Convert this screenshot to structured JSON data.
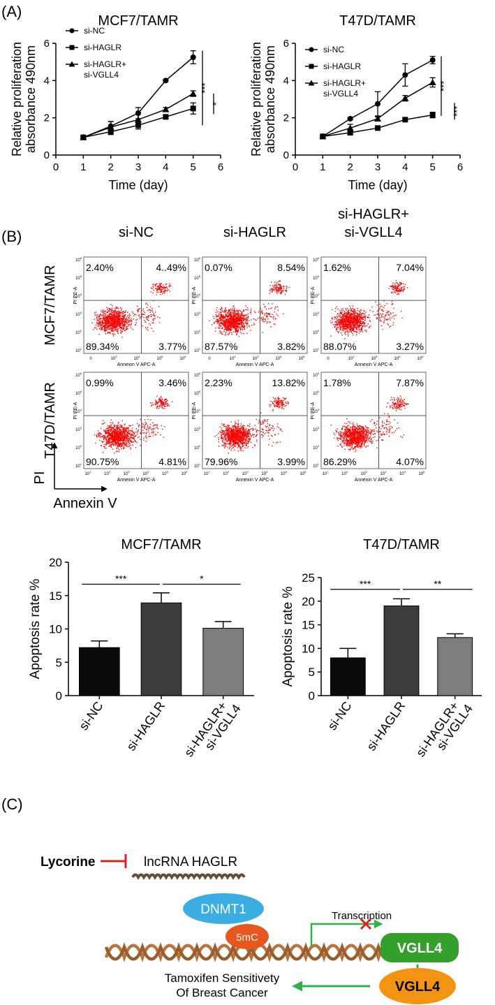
{
  "panels": {
    "A": "(A)",
    "B": "(B)",
    "C": "(C)"
  },
  "chart_data": [
    {
      "type": "line",
      "title": "MCF7/TAMR",
      "xlabel": "Time (day)",
      "ylabel_lines": [
        "Relative proliferation",
        "absorbance 490nm"
      ],
      "xlim": [
        0,
        6
      ],
      "ylim": [
        0,
        6
      ],
      "xticks": [
        "0",
        "1",
        "2",
        "3",
        "4",
        "5",
        "6"
      ],
      "yticks": [
        "0",
        "2",
        "4",
        "6"
      ],
      "x": [
        1,
        2,
        3,
        4,
        5
      ],
      "series": [
        {
          "name": "si-NC",
          "marker": "circle",
          "values": [
            0.95,
            1.55,
            2.25,
            4.0,
            5.25
          ],
          "errors": [
            0.08,
            0.25,
            0.3,
            0.05,
            0.35
          ]
        },
        {
          "name": "si-HAGLR",
          "marker": "square",
          "values": [
            0.95,
            1.25,
            1.6,
            2.05,
            2.5
          ],
          "errors": [
            0.05,
            0.15,
            0.2,
            0.1,
            0.3
          ]
        },
        {
          "name": "si-HAGLR+ si-VGLL4",
          "legend_lines": [
            "si-HAGLR+",
            "si-VGLL4"
          ],
          "marker": "triangle",
          "values": [
            0.95,
            1.5,
            1.9,
            2.45,
            3.3
          ],
          "errors": [
            0.05,
            0.3,
            0.35,
            0.1,
            0.15
          ]
        }
      ],
      "significance": [
        "***",
        "*"
      ]
    },
    {
      "type": "line",
      "title": "T47D/TAMR",
      "xlabel": "Time (day)",
      "ylabel_lines": [
        "Relative proliferation",
        "absorbance 490nm"
      ],
      "xlim": [
        0,
        6
      ],
      "ylim": [
        0,
        6
      ],
      "xticks": [
        "0",
        "1",
        "2",
        "3",
        "4",
        "5",
        "6"
      ],
      "yticks": [
        "0",
        "2",
        "4",
        "6"
      ],
      "x": [
        1,
        2,
        3,
        4,
        5
      ],
      "series": [
        {
          "name": "si-NC",
          "marker": "circle",
          "values": [
            1.0,
            1.95,
            2.75,
            4.3,
            5.1
          ],
          "errors": [
            0.05,
            0.05,
            0.65,
            0.6,
            0.2
          ]
        },
        {
          "name": "si-HAGLR",
          "marker": "square",
          "values": [
            1.0,
            1.2,
            1.45,
            1.9,
            2.15
          ],
          "errors": [
            0.05,
            0.1,
            0.05,
            0.05,
            0.15
          ]
        },
        {
          "name": "si-HAGLR+ si-VGLL4",
          "legend_lines": [
            "si-HAGLR+",
            "si-VGLL4"
          ],
          "marker": "triangle",
          "values": [
            1.0,
            1.45,
            1.95,
            3.05,
            3.9
          ],
          "errors": [
            0.05,
            0.2,
            0.1,
            0.15,
            0.25
          ]
        }
      ],
      "significance": [
        "***",
        "***"
      ]
    },
    {
      "type": "bar",
      "title": "MCF7/TAMR",
      "ylabel": "Apoptosis rate %",
      "ylim": [
        0,
        20
      ],
      "yticks": [
        "0",
        "5",
        "10",
        "15",
        "20"
      ],
      "categories": [
        "si-NC",
        "si-HAGLR",
        "si-HAGLR+ si-VGLL4"
      ],
      "category_lines": [
        [
          "si-NC"
        ],
        [
          "si-HAGLR"
        ],
        [
          "si-HAGLR+",
          "si-VGLL4"
        ]
      ],
      "values": [
        7.2,
        13.9,
        10.1
      ],
      "errors": [
        1.0,
        1.5,
        1.0
      ],
      "colors": [
        "#0a0a0a",
        "#3c3c3f",
        "#7d7d7d"
      ],
      "significance": [
        "***",
        "*"
      ]
    },
    {
      "type": "bar",
      "title": "T47D/TAMR",
      "ylabel": "Apoptosis rate %",
      "ylim": [
        0,
        25
      ],
      "yticks": [
        "0",
        "5",
        "10",
        "15",
        "20",
        "25"
      ],
      "categories": [
        "si-NC",
        "si-HAGLR",
        "si-HAGLR+ si-VGLL4"
      ],
      "category_lines": [
        [
          "si-NC"
        ],
        [
          "si-HAGLR"
        ],
        [
          "si-HAGLR+",
          "si-VGLL4"
        ]
      ],
      "values": [
        8.0,
        19.0,
        12.3
      ],
      "errors": [
        2.0,
        1.5,
        0.8
      ],
      "colors": [
        "#0a0a0a",
        "#3c3c3f",
        "#7d7d7d"
      ],
      "significance": [
        "***",
        "**"
      ]
    }
  ],
  "flow": {
    "col_titles": [
      [
        "si-NC"
      ],
      [
        "si-HAGLR"
      ],
      [
        "si-HAGLR+",
        "si-VGLL4"
      ]
    ],
    "row_titles": [
      "MCF7/TAMR",
      "T47D/TAMR"
    ],
    "x_axis_title": "Annexin V APC-A",
    "y_axis_title": "PI PE-A",
    "tick_exponents": [
      "1",
      "2",
      "3",
      "4",
      "5",
      "6"
    ],
    "top_row_x_ticks": [
      "0",
      "10",
      "10",
      "10",
      "10"
    ],
    "top_row_x_exp": [
      "",
      "3",
      "4",
      "5",
      "6"
    ],
    "axis_arrows": {
      "y": "PI",
      "x": "Annexin V"
    },
    "rows": [
      [
        {
          "ul": "2.40%",
          "ur": "4..49%",
          "ll": "89.34%",
          "lr": "3.77%"
        },
        {
          "ul": "0.07%",
          "ur": "8.54%",
          "ll": "87.57%",
          "lr": "3.82%"
        },
        {
          "ul": "1.62%",
          "ur": "7.04%",
          "ll": "88.07%",
          "lr": "3.27%"
        }
      ],
      [
        {
          "ul": "0.99%",
          "ur": "3.46%",
          "ll": "90.75%",
          "lr": "4.81%"
        },
        {
          "ul": "2.23%",
          "ur": "13.82%",
          "ll": "79.96%",
          "lr": "3.99%"
        },
        {
          "ul": "1.78%",
          "ur": "7.87%",
          "ll": "86.29%",
          "lr": "4.07%"
        }
      ]
    ],
    "dot_color": "#ff0000"
  },
  "diagram": {
    "lycorine": "Lycorine",
    "lncrna": "lncRNA HAGLR",
    "dnmt1": "DNMT1",
    "methyl": "5mC",
    "transcription": "Transcription",
    "gene": "VGLL4",
    "protein": "VGLL4",
    "outcome_lines": [
      "Tamoxifen Sensitivety",
      "Of Breast Cancer"
    ],
    "colors": {
      "inhibit": "#e02020",
      "rna": "#6b4a35",
      "dna": "#b8753f",
      "dnmt1": "#3aaee3",
      "methyl": "#e8561d",
      "gene": "#33a02c",
      "protein": "#f29411",
      "arrow": "#2db34a"
    }
  }
}
